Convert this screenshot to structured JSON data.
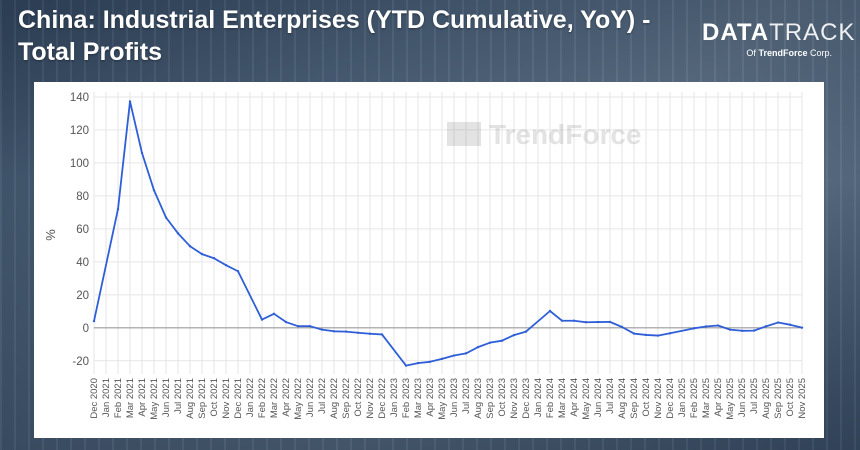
{
  "header": {
    "title": "China: Industrial Enterprises (YTD Cumulative, YoY) - Total Profits"
  },
  "logo": {
    "main_bold": "DATA",
    "main_light": "TRACK",
    "sub_prefix": "Of",
    "sub_brand": "TrendForce",
    "sub_suffix": "Corp."
  },
  "watermark": "TrendForce",
  "colors": {
    "line": "#2f5fd8",
    "grid": "#e6e6e6",
    "zero_line": "#9a9a9a",
    "tick_text": "#555555"
  },
  "chart_data": {
    "type": "line",
    "title": "China: Industrial Enterprises (YTD Cumulative, YoY) - Total Profits",
    "xlabel": "",
    "ylabel": "%",
    "ylim": [
      -28,
      143
    ],
    "yticks": [
      -20,
      0,
      20,
      40,
      60,
      80,
      100,
      120,
      140
    ],
    "grid": true,
    "legend": "none",
    "categories": [
      "Dec 2020",
      "Jan 2021",
      "Feb 2021",
      "Mar 2021",
      "Apr 2021",
      "May 2021",
      "Jun 2021",
      "Jul 2021",
      "Aug 2021",
      "Sep 2021",
      "Oct 2021",
      "Nov 2021",
      "Dec 2021",
      "Jan 2022",
      "Feb 2022",
      "Mar 2022",
      "Apr 2022",
      "May 2022",
      "Jun 2022",
      "Jul 2022",
      "Aug 2022",
      "Sep 2022",
      "Oct 2022",
      "Nov 2022",
      "Dec 2022",
      "Jan 2023",
      "Feb 2023",
      "Mar 2023",
      "Apr 2023",
      "May 2023",
      "Jun 2023",
      "Jul 2023",
      "Aug 2023",
      "Sep 2023",
      "Oct 2023",
      "Nov 2023",
      "Dec 2023",
      "Jan 2024",
      "Feb 2024",
      "Mar 2024",
      "Apr 2024",
      "May 2024",
      "Jun 2024",
      "Jul 2024",
      "Aug 2024",
      "Sep 2024",
      "Oct 2024",
      "Nov 2024",
      "Dec 2024",
      "Jan 2025",
      "Feb 2025",
      "Mar 2025",
      "Apr 2025",
      "May 2025",
      "Jun 2025",
      "Jul 2025",
      "Aug 2025",
      "Sep 2025",
      "Oct 2025",
      "Nov 2025"
    ],
    "series": [
      {
        "values": [
          4.1,
          null,
          72,
          137.3,
          106,
          83.4,
          66.9,
          57.3,
          49.5,
          44.7,
          42.2,
          38,
          34.3,
          null,
          5,
          8.5,
          3.5,
          1,
          1,
          -1.1,
          -2.1,
          -2.3,
          -3,
          -3.6,
          -4,
          null,
          -22.9,
          -21.4,
          -20.6,
          -18.8,
          -16.8,
          -15.5,
          -11.7,
          -9,
          -7.8,
          -4.4,
          -2.3,
          null,
          10.2,
          4.3,
          4.3,
          3.4,
          3.5,
          3.6,
          0.5,
          -3.5,
          -4.3,
          -4.7,
          -3.3,
          null,
          -0.3,
          0.8,
          1.4,
          -1.1,
          -1.8,
          -1.7,
          0.9,
          3.2,
          1.9,
          0.1
        ]
      }
    ]
  }
}
